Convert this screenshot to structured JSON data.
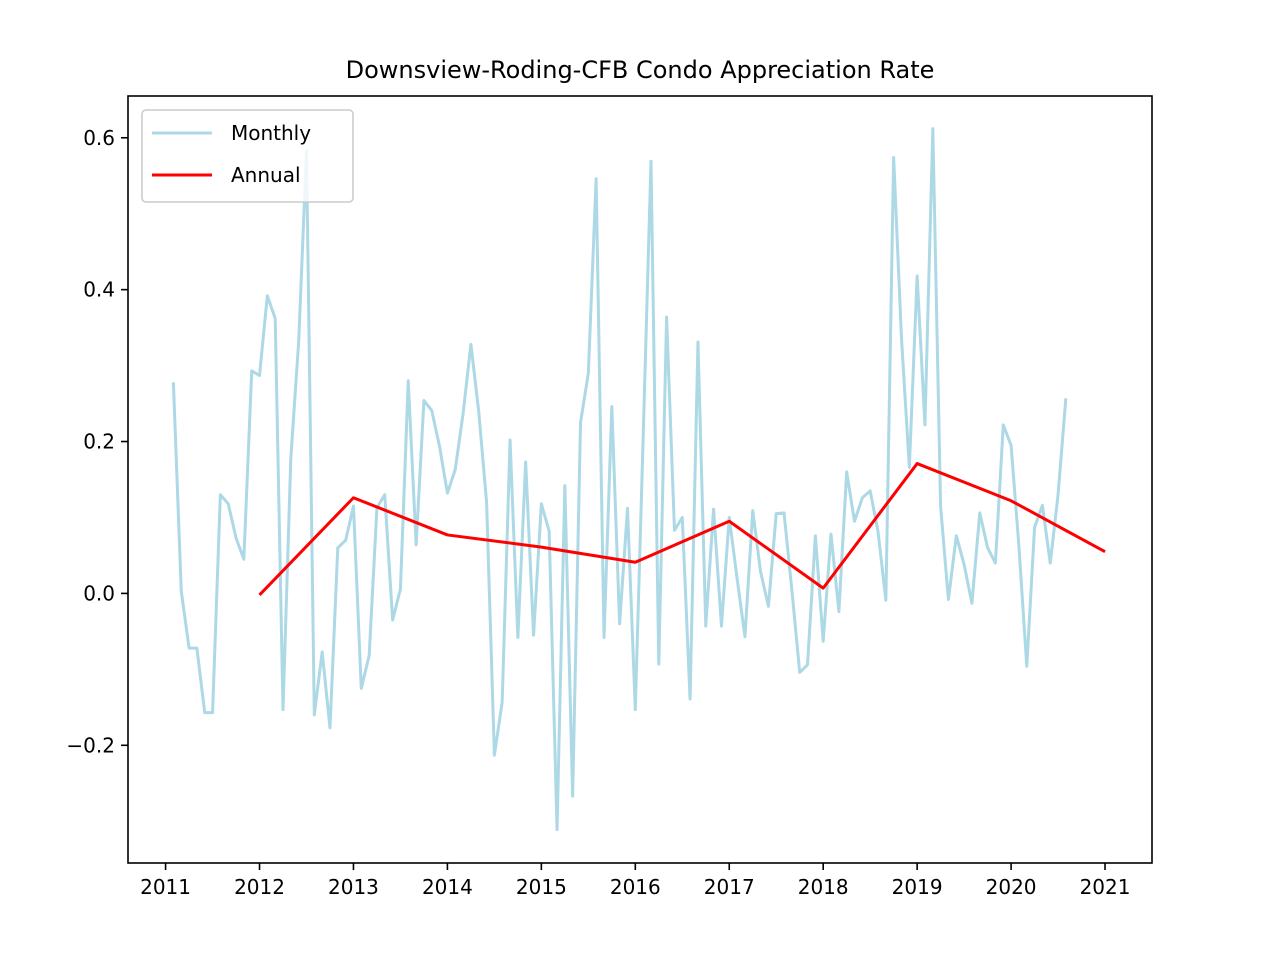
{
  "chart_data": {
    "type": "line",
    "title": "Downsview-Roding-CFB Condo Appreciation Rate",
    "xlabel": "",
    "ylabel": "",
    "xlim": [
      2010.6,
      2021.5
    ],
    "ylim": [
      -0.355,
      0.655
    ],
    "xticks": [
      2011,
      2012,
      2013,
      2014,
      2015,
      2016,
      2017,
      2018,
      2019,
      2020,
      2021
    ],
    "xtick_labels": [
      "2011",
      "2012",
      "2013",
      "2014",
      "2015",
      "2016",
      "2017",
      "2018",
      "2019",
      "2020",
      "2021"
    ],
    "yticks": [
      -0.2,
      0.0,
      0.2,
      0.4,
      0.6
    ],
    "ytick_labels": [
      "−0.2",
      "0.0",
      "0.2",
      "0.4",
      "0.6"
    ],
    "grid": false,
    "legend": {
      "placement": "upper-left",
      "entries": [
        "Monthly",
        "Annual"
      ]
    },
    "series": [
      {
        "name": "Monthly",
        "color": "#add8e6",
        "x": [
          2011.083,
          2011.167,
          2011.25,
          2011.333,
          2011.417,
          2011.5,
          2011.583,
          2011.667,
          2011.75,
          2011.833,
          2011.917,
          2012.0,
          2012.083,
          2012.167,
          2012.25,
          2012.333,
          2012.417,
          2012.5,
          2012.583,
          2012.667,
          2012.75,
          2012.833,
          2012.917,
          2013.0,
          2013.083,
          2013.167,
          2013.25,
          2013.333,
          2013.417,
          2013.5,
          2013.583,
          2013.667,
          2013.75,
          2013.833,
          2013.917,
          2014.0,
          2014.083,
          2014.167,
          2014.25,
          2014.333,
          2014.417,
          2014.5,
          2014.583,
          2014.667,
          2014.75,
          2014.833,
          2014.917,
          2015.0,
          2015.083,
          2015.167,
          2015.25,
          2015.333,
          2015.417,
          2015.5,
          2015.583,
          2015.667,
          2015.75,
          2015.833,
          2015.917,
          2016.0,
          2016.083,
          2016.167,
          2016.25,
          2016.333,
          2016.417,
          2016.5,
          2016.583,
          2016.667,
          2016.75,
          2016.833,
          2016.917,
          2017.0,
          2017.083,
          2017.167,
          2017.25,
          2017.333,
          2017.417,
          2017.5,
          2017.583,
          2017.667,
          2017.75,
          2017.833,
          2017.917,
          2018.0,
          2018.083,
          2018.167,
          2018.25,
          2018.333,
          2018.417,
          2018.5,
          2018.583,
          2018.667,
          2018.75,
          2018.833,
          2018.917,
          2019.0,
          2019.083,
          2019.167,
          2019.25,
          2019.333,
          2019.417,
          2019.5,
          2019.583,
          2019.667,
          2019.75,
          2019.833,
          2019.917,
          2020.0,
          2020.083,
          2020.167,
          2020.25,
          2020.333,
          2020.417,
          2020.5,
          2020.583
        ],
        "values": [
          0.278,
          0.003,
          -0.072,
          -0.072,
          -0.157,
          -0.157,
          0.13,
          0.118,
          0.073,
          0.045,
          0.293,
          0.287,
          0.392,
          0.362,
          -0.153,
          0.178,
          0.332,
          0.583,
          -0.16,
          -0.077,
          -0.177,
          0.06,
          0.07,
          0.115,
          -0.125,
          -0.082,
          0.113,
          0.13,
          -0.035,
          0.006,
          0.28,
          0.064,
          0.254,
          0.241,
          0.193,
          0.132,
          0.163,
          0.237,
          0.328,
          0.24,
          0.12,
          -0.213,
          -0.143,
          0.202,
          -0.058,
          0.173,
          -0.055,
          0.118,
          0.082,
          -0.311,
          0.142,
          -0.267,
          0.225,
          0.29,
          0.546,
          -0.058,
          0.246,
          -0.04,
          0.112,
          -0.153,
          0.203,
          0.569,
          -0.093,
          0.364,
          0.083,
          0.1,
          -0.139,
          0.331,
          -0.043,
          0.111,
          -0.043,
          0.1,
          0.02,
          -0.057,
          0.109,
          0.029,
          -0.017,
          0.105,
          0.106,
          0.004,
          -0.104,
          -0.094,
          0.076,
          -0.063,
          0.078,
          -0.024,
          0.16,
          0.095,
          0.126,
          0.135,
          0.082,
          -0.009,
          0.574,
          0.337,
          0.166,
          0.418,
          0.222,
          0.612,
          0.114,
          -0.008,
          0.076,
          0.038,
          -0.013,
          0.106,
          0.06,
          0.04,
          0.222,
          0.195,
          0.063,
          -0.096,
          0.087,
          0.116,
          0.04,
          0.13,
          0.257
        ]
      },
      {
        "name": "Annual",
        "color": "#ff0000",
        "x": [
          2012,
          2013,
          2014,
          2015,
          2016,
          2017,
          2018,
          2019,
          2020,
          2021
        ],
        "values": [
          -0.002,
          0.126,
          0.077,
          0.061,
          0.041,
          0.095,
          0.007,
          0.171,
          0.122,
          0.055
        ]
      }
    ]
  }
}
